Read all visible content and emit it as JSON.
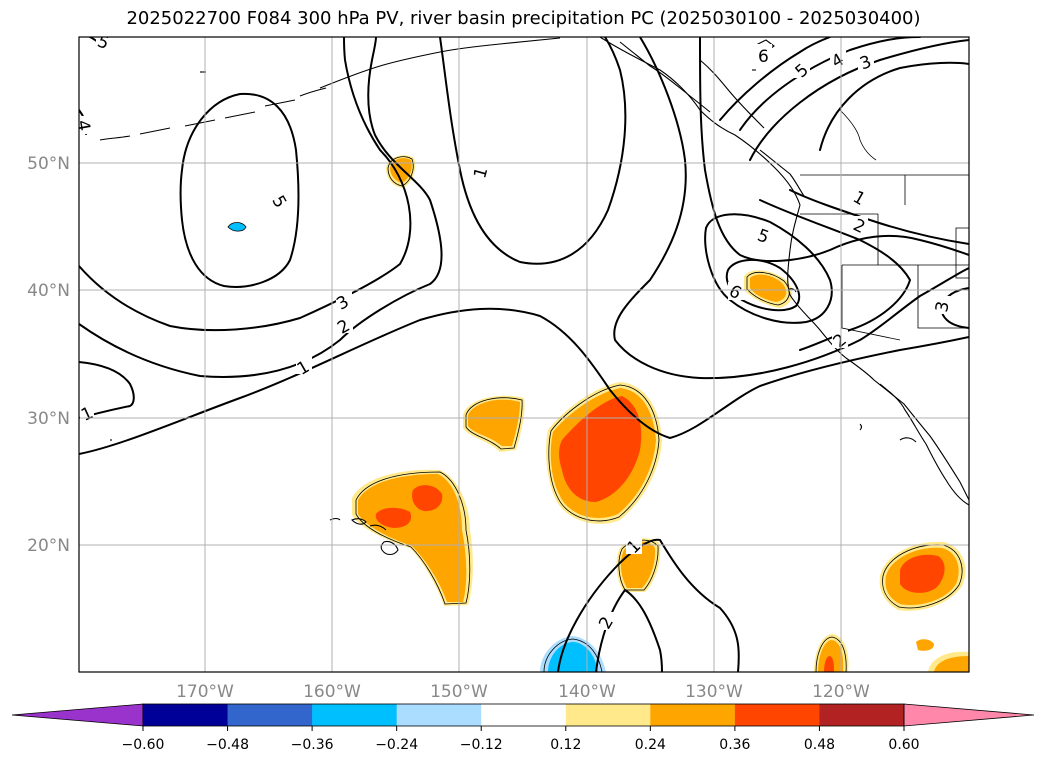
{
  "title": "2025022700 F084 300 hPa PV, river basin precipitation PC (2025030100 - 2025030400)",
  "axes": {
    "lat_ticks": [
      "50°N",
      "40°N",
      "30°N",
      "20°N"
    ],
    "lon_ticks": [
      "170°W",
      "160°W",
      "150°W",
      "140°W",
      "130°W",
      "120°W"
    ]
  },
  "colorbar": {
    "ticks": [
      "−0.60",
      "−0.48",
      "−0.36",
      "−0.24",
      "−0.12",
      "0.12",
      "0.24",
      "0.36",
      "0.48",
      "0.60"
    ],
    "colors": [
      "#9933cc",
      "#000099",
      "#3366cc",
      "#00bfff",
      "#aaddff",
      "#ffffff",
      "#ffe98a",
      "#ffa500",
      "#ff4500",
      "#b22222",
      "#ff88aa"
    ]
  },
  "contour_labels": [
    "1",
    "2",
    "3",
    "4",
    "5",
    "6"
  ],
  "colors": {
    "pos_low": "#ffe98a",
    "pos_mid": "#ffa500",
    "pos_high": "#ff4500",
    "neg_low": "#aaddff",
    "neg_mid": "#00bfff",
    "grid": "#b0b0b0",
    "tick_text": "#888888"
  }
}
